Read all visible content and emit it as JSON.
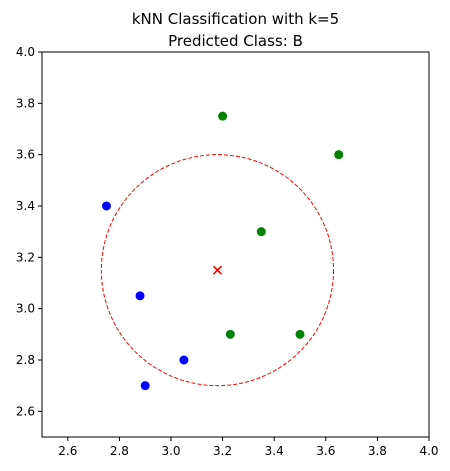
{
  "chart_data": {
    "type": "scatter",
    "title": "kNN Classification with k=5",
    "subtitle": "Predicted Class: B",
    "xlabel": "",
    "ylabel": "",
    "xlim": [
      2.5,
      4.0
    ],
    "ylim": [
      2.5,
      4.0
    ],
    "x_ticks": [
      "2.6",
      "2.8",
      "3.0",
      "3.2",
      "3.4",
      "3.6",
      "3.8",
      "4.0"
    ],
    "y_ticks": [
      "2.6",
      "2.8",
      "3.0",
      "3.2",
      "3.4",
      "3.6",
      "3.8",
      "4.0"
    ],
    "grid": false,
    "legend": "none",
    "series": [
      {
        "color": "#0000ff",
        "x": [
          2.75,
          2.88,
          3.05,
          2.9
        ],
        "y": [
          3.4,
          3.05,
          2.8,
          2.7
        ]
      },
      {
        "color": "#008000",
        "x": [
          3.2,
          3.65,
          3.35,
          3.23,
          3.5
        ],
        "y": [
          3.75,
          3.6,
          3.3,
          2.9,
          2.9
        ]
      }
    ],
    "query_point": {
      "x": 3.18,
      "y": 3.15,
      "marker": "x",
      "color": "#ff0000"
    },
    "neighbor_circle": {
      "center_x": 3.18,
      "center_y": 3.15,
      "radius": 0.45,
      "style": "dashed",
      "color": "#ff0000"
    }
  }
}
